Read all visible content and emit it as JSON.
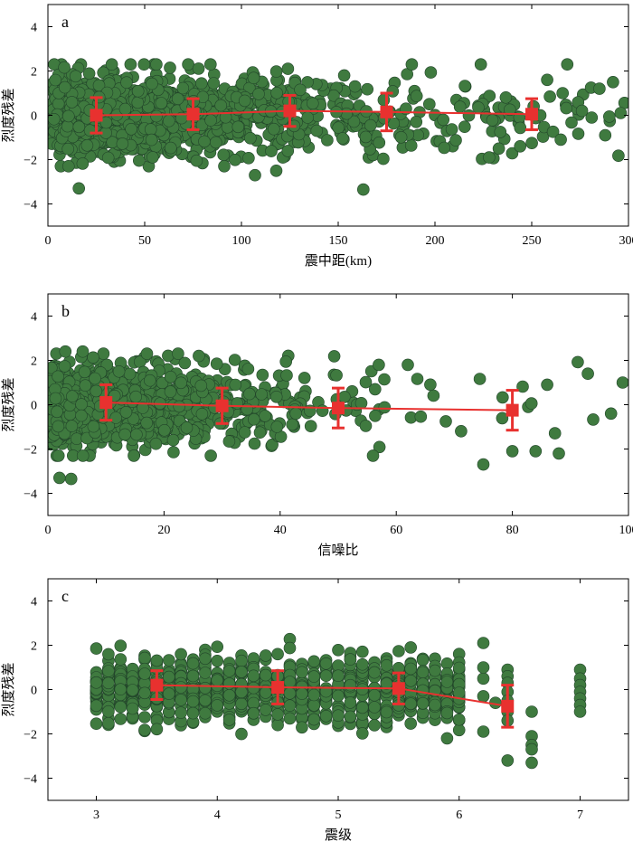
{
  "colors": {
    "points": "#3f7a3f",
    "points_edge": "#22452a",
    "mean": "#e8312f"
  },
  "chart_data": [
    {
      "type": "scatter",
      "panel": "a",
      "xlabel": "震中距(km)",
      "ylabel": "烈度残差",
      "xlim": [
        0,
        300
      ],
      "ylim": [
        -5,
        5
      ],
      "xticks": [
        0,
        50,
        100,
        150,
        200,
        250,
        300
      ],
      "yticks": [
        -4,
        -2,
        0,
        2,
        4
      ],
      "point_spec": {
        "distribution": "dense-decay",
        "count": 1300,
        "xmin": 2,
        "xmax": 298,
        "decay": 70,
        "sd": 0.85,
        "seed": 11
      },
      "extra_points": [
        [
          16,
          -3.3
        ],
        [
          163,
          -3.35
        ],
        [
          107,
          -2.7
        ],
        [
          118,
          -2.5
        ],
        [
          33,
          2.3
        ],
        [
          84,
          2.3
        ],
        [
          124,
          2.1
        ],
        [
          228,
          -1.9
        ],
        [
          233,
          -1.5
        ],
        [
          244,
          -1.4
        ],
        [
          258,
          1.6
        ],
        [
          266,
          1.0
        ],
        [
          276,
          0.2
        ],
        [
          285,
          1.2
        ],
        [
          292,
          1.5
        ],
        [
          288,
          -0.9
        ],
        [
          296,
          0.1
        ],
        [
          265,
          -1.1
        ]
      ],
      "means": [
        {
          "x": 25,
          "y": 0.0,
          "err": 0.8
        },
        {
          "x": 75,
          "y": 0.05,
          "err": 0.7
        },
        {
          "x": 125,
          "y": 0.2,
          "err": 0.7
        },
        {
          "x": 175,
          "y": 0.15,
          "err": 0.85
        },
        {
          "x": 250,
          "y": 0.05,
          "err": 0.7
        }
      ]
    },
    {
      "type": "scatter",
      "panel": "b",
      "xlabel": "信噪比",
      "ylabel": "烈度残差",
      "xlim": [
        0,
        100
      ],
      "ylim": [
        -5,
        5
      ],
      "xticks": [
        0,
        20,
        40,
        60,
        80,
        100
      ],
      "yticks": [
        -4,
        -2,
        0,
        2,
        4
      ],
      "point_spec": {
        "distribution": "dense-decay",
        "count": 1300,
        "xmin": 0.3,
        "xmax": 99,
        "decay": 14,
        "sd": 0.85,
        "seed": 23
      },
      "extra_points": [
        [
          2,
          -3.3
        ],
        [
          4,
          -3.35
        ],
        [
          3,
          2.4
        ],
        [
          6,
          2.4
        ],
        [
          26,
          2.2
        ],
        [
          57,
          1.8
        ],
        [
          62,
          1.8
        ],
        [
          75,
          -2.7
        ],
        [
          84,
          -2.1
        ],
        [
          88,
          -2.2
        ],
        [
          93,
          1.4
        ],
        [
          99,
          1.0
        ],
        [
          97,
          -0.4
        ],
        [
          86,
          0.9
        ],
        [
          80,
          -2.1
        ],
        [
          56,
          -2.3
        ]
      ],
      "means": [
        {
          "x": 10,
          "y": 0.1,
          "err": 0.8
        },
        {
          "x": 30,
          "y": -0.05,
          "err": 0.8
        },
        {
          "x": 50,
          "y": -0.15,
          "err": 0.9
        },
        {
          "x": 80,
          "y": -0.25,
          "err": 0.9
        }
      ]
    },
    {
      "type": "scatter",
      "panel": "c",
      "xlabel": "震级",
      "ylabel": "烈度残差",
      "xlim": [
        2.6,
        7.4
      ],
      "ylim": [
        -5,
        5
      ],
      "xticks": [
        3,
        4,
        5,
        6,
        7
      ],
      "yticks": [
        -4,
        -2,
        0,
        2,
        4
      ],
      "point_spec": {
        "distribution": "columns",
        "xstart": 3.0,
        "xend": 6.0,
        "step": 0.1,
        "per_column": 26,
        "sd": 0.75,
        "seed": 37
      },
      "extra_points": [
        [
          6.2,
          2.1
        ],
        [
          6.2,
          -1.9
        ],
        [
          6.2,
          -0.3
        ],
        [
          6.2,
          0.5
        ],
        [
          6.2,
          1.0
        ],
        [
          6.3,
          -0.6
        ],
        [
          6.4,
          0.9
        ],
        [
          6.4,
          0.6
        ],
        [
          6.4,
          0.3
        ],
        [
          6.4,
          -0.1
        ],
        [
          6.4,
          -0.5
        ],
        [
          6.4,
          -1.0
        ],
        [
          6.4,
          -1.4
        ],
        [
          6.4,
          -3.2
        ],
        [
          6.6,
          -1.0
        ],
        [
          6.6,
          -2.1
        ],
        [
          6.6,
          -2.5
        ],
        [
          6.6,
          -2.7
        ],
        [
          6.6,
          -3.3
        ],
        [
          7.0,
          0.9
        ],
        [
          7.0,
          0.5
        ],
        [
          7.0,
          0.2
        ],
        [
          7.0,
          -0.1
        ],
        [
          7.0,
          -0.4
        ],
        [
          7.0,
          -0.7
        ],
        [
          7.0,
          -1.0
        ]
      ],
      "means": [
        {
          "x": 3.5,
          "y": 0.2,
          "err": 0.65
        },
        {
          "x": 4.5,
          "y": 0.1,
          "err": 0.75
        },
        {
          "x": 5.5,
          "y": 0.05,
          "err": 0.7
        },
        {
          "x": 6.4,
          "y": -0.75,
          "err": 0.95
        }
      ]
    }
  ]
}
